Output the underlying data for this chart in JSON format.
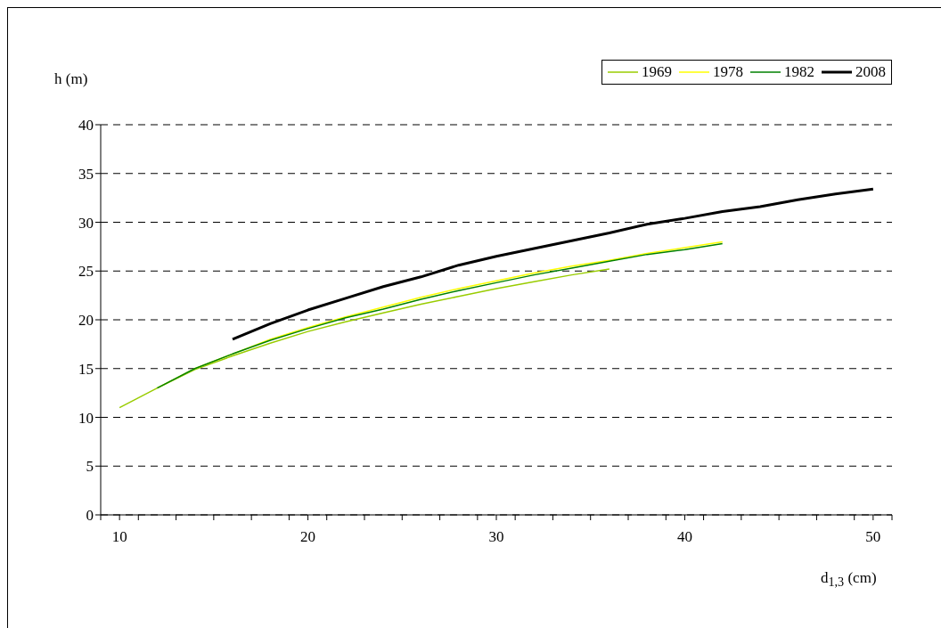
{
  "chart_data": {
    "type": "line",
    "xlabel": "d$_{1,3}$ (cm)",
    "ylabel": "h (m)",
    "xlim": [
      9,
      51
    ],
    "xticks": [
      {
        "value": 9,
        "label": null
      },
      10,
      {
        "value": 11,
        "label": null
      },
      {
        "value": 13,
        "label": null
      },
      {
        "value": 15,
        "label": null
      },
      {
        "value": 17,
        "label": null
      },
      {
        "value": 19,
        "label": null
      },
      20,
      {
        "value": 21,
        "label": null
      },
      {
        "value": 23,
        "label": null
      },
      {
        "value": 25,
        "label": null
      },
      {
        "value": 27,
        "label": null
      },
      {
        "value": 29,
        "label": null
      },
      30,
      {
        "value": 31,
        "label": null
      },
      {
        "value": 33,
        "label": null
      },
      {
        "value": 35,
        "label": null
      },
      {
        "value": 37,
        "label": null
      },
      {
        "value": 39,
        "label": null
      },
      40,
      {
        "value": 41,
        "label": null
      },
      {
        "value": 43,
        "label": null
      },
      {
        "value": 45,
        "label": null
      },
      {
        "value": 47,
        "label": null
      },
      {
        "value": 49,
        "label": null
      },
      50,
      {
        "value": 51,
        "label": null
      }
    ],
    "ylim": [
      0,
      40
    ],
    "yticks": [
      0,
      5,
      10,
      15,
      20,
      25,
      30,
      35,
      40
    ],
    "grid": "y",
    "legend": "top right",
    "marker": "none",
    "line_style": "solid",
    "series": [
      {
        "name": "1969",
        "color": "#99cc00",
        "x": [
          10,
          12,
          14,
          16,
          18,
          20,
          22,
          24,
          26,
          28,
          30,
          32,
          34,
          36
        ],
        "values": [
          11.0,
          13.0,
          14.9,
          16.3,
          17.6,
          18.8,
          19.8,
          20.7,
          21.6,
          22.4,
          23.2,
          23.9,
          24.6,
          25.2
        ]
      },
      {
        "name": "1978",
        "color": "#ffff00",
        "x": [
          12,
          14,
          16,
          18,
          20,
          22,
          24,
          26,
          28,
          30,
          32,
          34,
          36,
          38,
          40,
          42
        ],
        "values": [
          13.0,
          15.0,
          16.5,
          18.0,
          19.2,
          20.3,
          21.3,
          22.3,
          23.2,
          24.0,
          24.8,
          25.5,
          26.1,
          26.8,
          27.4,
          28.0
        ]
      },
      {
        "name": "1982",
        "color": "#008000",
        "x": [
          12,
          14,
          16,
          18,
          20,
          22,
          24,
          26,
          28,
          30,
          32,
          34,
          36,
          38,
          40,
          42
        ],
        "values": [
          13.0,
          15.0,
          16.5,
          17.9,
          19.1,
          20.2,
          21.1,
          22.1,
          23.0,
          23.8,
          24.6,
          25.3,
          26.0,
          26.7,
          27.2,
          27.8
        ]
      },
      {
        "name": "2008",
        "color": "#000000",
        "x": [
          16,
          18,
          20,
          22,
          24,
          26,
          28,
          30,
          32,
          34,
          36,
          38,
          40,
          42,
          44,
          46,
          48,
          50
        ],
        "values": [
          18.0,
          19.6,
          21.0,
          22.2,
          23.4,
          24.4,
          25.6,
          26.5,
          27.3,
          28.1,
          28.9,
          29.8,
          30.4,
          31.1,
          31.6,
          32.3,
          32.9,
          33.4
        ]
      }
    ]
  }
}
